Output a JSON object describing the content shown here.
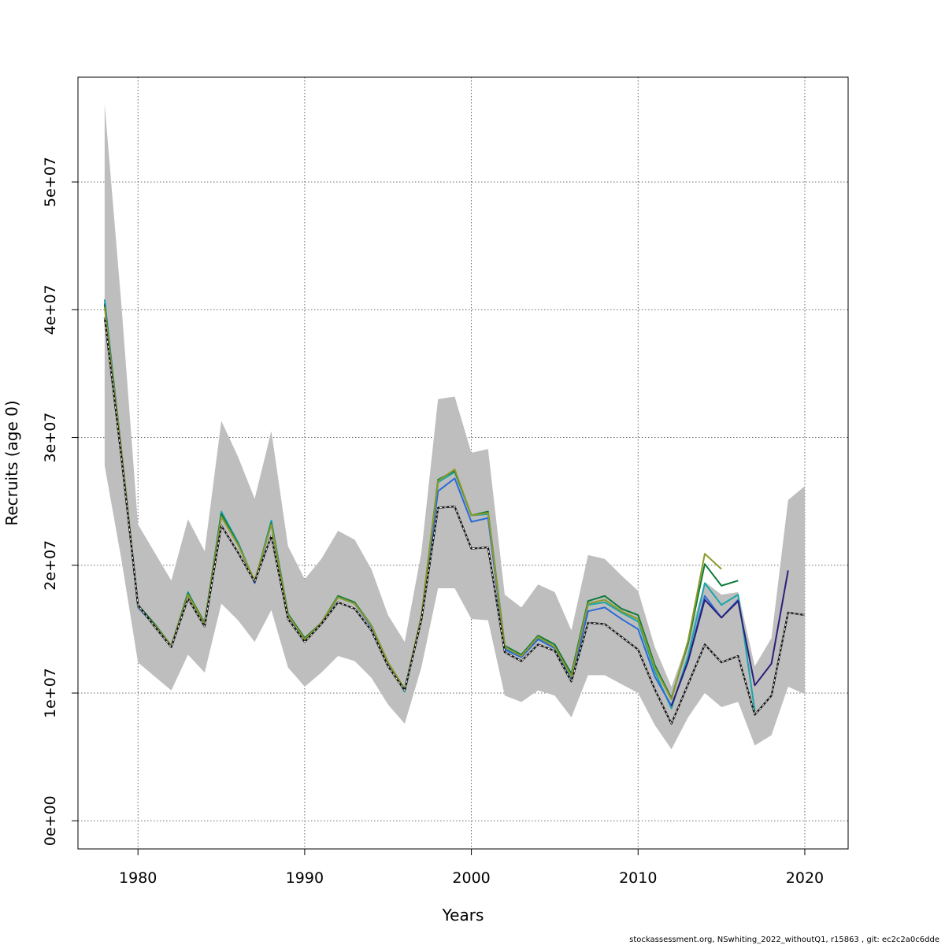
{
  "chart_data": {
    "type": "line",
    "title": "",
    "xlabel": "Years",
    "ylabel": "Recruits (age 0)",
    "xlim": [
      1976.4,
      2022.6
    ],
    "ylim": [
      -2200000,
      58200000
    ],
    "x_ticks": [
      1980,
      1990,
      2000,
      2010,
      2020
    ],
    "x_tick_labels": [
      "1980",
      "1990",
      "2000",
      "2010",
      "2020"
    ],
    "y_ticks": [
      0,
      10000000,
      20000000,
      30000000,
      40000000,
      50000000
    ],
    "y_tick_labels": [
      "0e+00",
      "1e+07",
      "2e+07",
      "3e+07",
      "4e+07",
      "5e+07"
    ],
    "grid": true,
    "confidence_band": {
      "name": "",
      "color": "#bebebe",
      "x": [
        1978,
        1979,
        1980,
        1981,
        1982,
        1983,
        1984,
        1985,
        1986,
        1987,
        1988,
        1989,
        1990,
        1991,
        1992,
        1993,
        1994,
        1995,
        1996,
        1997,
        1998,
        1999,
        2000,
        2001,
        2002,
        2003,
        2004,
        2005,
        2006,
        2007,
        2008,
        2009,
        2010,
        2011,
        2012,
        2013,
        2014,
        2015,
        2016,
        2017,
        2018,
        2019,
        2020
      ],
      "upper": [
        56100000,
        40500000,
        23200000,
        21000000,
        18800000,
        23600000,
        21100000,
        31300000,
        28500000,
        25200000,
        30500000,
        21500000,
        18900000,
        20500000,
        22700000,
        22000000,
        19700000,
        16100000,
        14000000,
        21000000,
        33000000,
        33200000,
        28800000,
        29100000,
        17700000,
        16700000,
        18500000,
        17900000,
        14900000,
        20800000,
        20500000,
        19200000,
        18000000,
        13600000,
        10500000,
        14100000,
        18700000,
        17700000,
        17900000,
        12100000,
        14300000,
        25100000,
        26200000
      ],
      "lower": [
        27800000,
        20500000,
        12400000,
        11300000,
        10200000,
        13000000,
        11600000,
        17000000,
        15700000,
        14000000,
        16500000,
        12000000,
        10500000,
        11600000,
        12900000,
        12500000,
        11200000,
        9100000,
        7600000,
        12000000,
        18200000,
        18200000,
        15800000,
        15700000,
        9800000,
        9300000,
        10200000,
        9800000,
        8100000,
        11400000,
        11400000,
        10700000,
        10000000,
        7500000,
        5600000,
        8100000,
        10000000,
        8900000,
        9300000,
        5900000,
        6700000,
        10500000,
        9900000
      ]
    },
    "series": [
      {
        "name": "",
        "color": "#1ba5a8",
        "width": 2,
        "x": [
          1978,
          1979,
          1980,
          1981,
          1982,
          1983,
          1984,
          1985,
          1986,
          1987,
          1988,
          1989,
          1990,
          1991,
          1992,
          1993,
          1994,
          1995,
          1996,
          1997,
          1998,
          1999,
          2000,
          2001,
          2002,
          2003,
          2004,
          2005,
          2006,
          2007,
          2008,
          2009,
          2010,
          2011,
          2012,
          2013,
          2014,
          2015,
          2016,
          2017
        ],
        "y": [
          40800000,
          29000000,
          16800000,
          15400000,
          13600000,
          17900000,
          15300000,
          24200000,
          21800000,
          18700000,
          23500000,
          16200000,
          14000000,
          15400000,
          17500000,
          17000000,
          15200000,
          12300000,
          10100000,
          15800000,
          26500000,
          27300000,
          23900000,
          24000000,
          13500000,
          12900000,
          14300000,
          13600000,
          11300000,
          16900000,
          17100000,
          16300000,
          15600000,
          11700000,
          8800000,
          12900000,
          18600000,
          16900000,
          17700000,
          8600000
        ]
      },
      {
        "name": "",
        "color": "#2a6ad8",
        "width": 2,
        "x": [
          1978,
          1979,
          1980,
          1981,
          1982,
          1983,
          1984,
          1985,
          1986,
          1987,
          1988,
          1989,
          1990,
          1991,
          1992,
          1993,
          1994,
          1995,
          1996,
          1997,
          1998,
          1999,
          2000,
          2001,
          2002,
          2003,
          2004,
          2005,
          2006,
          2007,
          2008,
          2009,
          2010,
          2011,
          2012,
          2013,
          2014,
          2015,
          2016
        ],
        "y": [
          40500000,
          29000000,
          16700000,
          15300000,
          13600000,
          17800000,
          15300000,
          24000000,
          21700000,
          18600000,
          23300000,
          16100000,
          14100000,
          15500000,
          17500000,
          17000000,
          15200000,
          12300000,
          10200000,
          15800000,
          25800000,
          26800000,
          23400000,
          23700000,
          13400000,
          12800000,
          14200000,
          13500000,
          11000000,
          16400000,
          16700000,
          15800000,
          15000000,
          11300000,
          9000000,
          12500000,
          17600000,
          15900000,
          17300000
        ]
      },
      {
        "name": "",
        "color": "#0d7a3a",
        "width": 2,
        "x": [
          1978,
          1979,
          1980,
          1981,
          1982,
          1983,
          1984,
          1985,
          1986,
          1987,
          1988,
          1989,
          1990,
          1991,
          1992,
          1993,
          1994,
          1995,
          1996,
          1997,
          1998,
          1999,
          2000,
          2001,
          2002,
          2003,
          2004,
          2005,
          2006,
          2007,
          2008,
          2009,
          2010,
          2011,
          2012,
          2013,
          2014,
          2015,
          2016
        ],
        "y": [
          40400000,
          29000000,
          16900000,
          15400000,
          13700000,
          17800000,
          15500000,
          24000000,
          21700000,
          18700000,
          23300000,
          16200000,
          14300000,
          15500000,
          17600000,
          17100000,
          15300000,
          12400000,
          10300000,
          16000000,
          26700000,
          27400000,
          23900000,
          24200000,
          13700000,
          13000000,
          14500000,
          13800000,
          11500000,
          17200000,
          17600000,
          16600000,
          16100000,
          12200000,
          9600000,
          13900000,
          20100000,
          18400000,
          18800000
        ]
      },
      {
        "name": "",
        "color": "#8c9a2a",
        "width": 2,
        "x": [
          1978,
          1979,
          1980,
          1981,
          1982,
          1983,
          1984,
          1985,
          1986,
          1987,
          1988,
          1989,
          1990,
          1991,
          1992,
          1993,
          1994,
          1995,
          1996,
          1997,
          1998,
          1999,
          2000,
          2001,
          2002,
          2003,
          2004,
          2005,
          2006,
          2007,
          2008,
          2009,
          2010,
          2011,
          2012,
          2013,
          2014,
          2015
        ],
        "y": [
          40200000,
          29000000,
          16800000,
          15300000,
          13700000,
          17700000,
          15400000,
          23800000,
          21600000,
          18800000,
          23200000,
          16100000,
          14200000,
          15500000,
          17500000,
          17000000,
          15300000,
          12400000,
          10300000,
          16000000,
          26600000,
          27500000,
          23900000,
          24100000,
          13600000,
          12900000,
          14400000,
          13600000,
          11300000,
          17000000,
          17300000,
          16400000,
          15800000,
          12000000,
          9500000,
          14100000,
          20900000,
          19700000
        ]
      },
      {
        "name": "",
        "color": "#2a1f7a",
        "width": 2,
        "x": [
          2012,
          2013,
          2014,
          2015,
          2016,
          2017,
          2018,
          2019
        ],
        "y": [
          9000000,
          12500000,
          17300000,
          15900000,
          17200000,
          10600000,
          12300000,
          19600000
        ]
      },
      {
        "name": "",
        "color": "#222222",
        "width": 2,
        "dashed": true,
        "x": [
          1978,
          1979,
          1980,
          1981,
          1982,
          1983,
          1984,
          1985,
          1986,
          1987,
          1988,
          1989,
          1990,
          1991,
          1992,
          1993,
          1994,
          1995,
          1996,
          1997,
          1998,
          1999,
          2000,
          2001,
          2002,
          2003,
          2004,
          2005,
          2006,
          2007,
          2008,
          2009,
          2010,
          2011,
          2012,
          2013,
          2014,
          2015,
          2016,
          2017,
          2018,
          2019,
          2020
        ],
        "y": [
          39400000,
          28500000,
          16900000,
          15200000,
          13600000,
          17400000,
          15200000,
          23100000,
          21000000,
          18700000,
          22300000,
          15800000,
          14000000,
          15400000,
          17100000,
          16600000,
          14900000,
          12100000,
          10200000,
          15700000,
          24500000,
          24600000,
          21300000,
          21400000,
          13200000,
          12500000,
          13800000,
          13300000,
          10900000,
          15500000,
          15400000,
          14400000,
          13400000,
          10300000,
          7600000,
          10700000,
          13800000,
          12400000,
          12900000,
          8300000,
          9800000,
          16300000,
          16100000
        ]
      }
    ]
  },
  "footer_text": "stockassessment.org, NSwhiting_2022_withoutQ1, r15863 , git: ec2c2a0c6dde"
}
